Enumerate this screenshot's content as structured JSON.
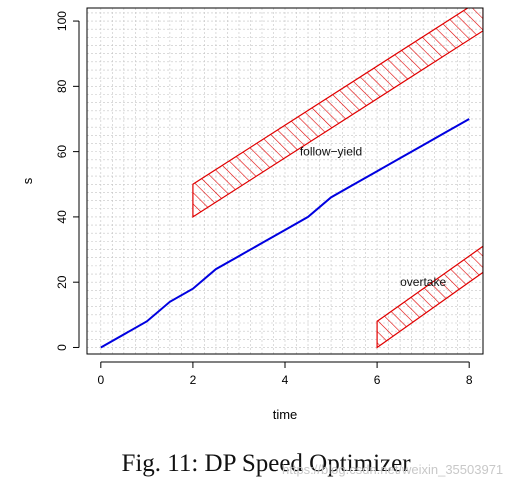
{
  "chart_data": {
    "type": "line",
    "title": "",
    "xlabel": "time",
    "ylabel": "s",
    "xlim": [
      -0.3,
      8.3
    ],
    "ylim": [
      -2,
      104
    ],
    "x_ticks": [
      0,
      2,
      4,
      6,
      8
    ],
    "y_ticks": [
      0,
      20,
      40,
      60,
      80,
      100
    ],
    "grid": true,
    "grid_style": "dashed gray",
    "series": [
      {
        "color": "#0000e0",
        "x": [
          0,
          1,
          1.5,
          2,
          2.5,
          3,
          3.5,
          4,
          4.5,
          5,
          5.5,
          6,
          6.5,
          7,
          7.5,
          8
        ],
        "y": [
          0,
          8,
          14,
          18,
          24,
          28,
          32,
          36,
          40,
          46,
          50,
          54,
          58,
          62,
          66,
          70
        ]
      }
    ],
    "regions": [
      {
        "label": "follow−yield",
        "color": "#e00000",
        "fill": "hatched",
        "polygon": [
          [
            2,
            40
          ],
          [
            8.3,
            97
          ],
          [
            8.3,
            107
          ],
          [
            2,
            50
          ]
        ],
        "label_at": [
          5,
          60
        ]
      },
      {
        "label": "overtake",
        "color": "#e00000",
        "fill": "hatched",
        "polygon": [
          [
            6,
            0
          ],
          [
            8.3,
            23
          ],
          [
            8.3,
            31
          ],
          [
            6,
            8
          ]
        ],
        "label_at": [
          7,
          20
        ]
      }
    ]
  },
  "caption": "Fig. 11: DP Speed Optimizer",
  "watermark": "https://blog.csdn.net/weixin_35503971"
}
